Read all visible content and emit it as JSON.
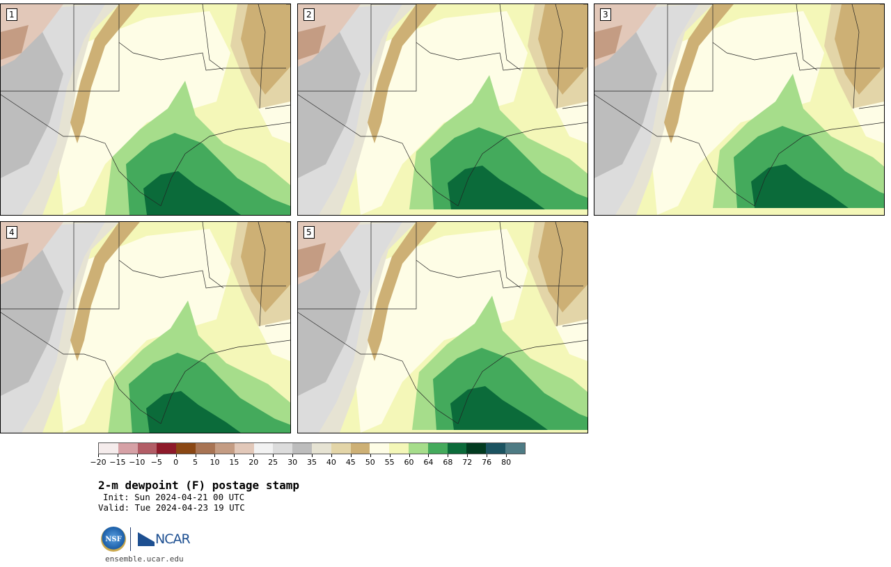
{
  "panels": [
    {
      "label": "1"
    },
    {
      "label": "2"
    },
    {
      "label": "3"
    },
    {
      "label": "4"
    },
    {
      "label": "5"
    }
  ],
  "colorbar": {
    "labels": [
      "−20",
      "−15",
      "−10",
      "−5",
      "0",
      "5",
      "10",
      "15",
      "20",
      "25",
      "30",
      "35",
      "40",
      "45",
      "50",
      "55",
      "60",
      "64",
      "68",
      "72",
      "76",
      "80"
    ],
    "colors": [
      "#f5ecec",
      "#d6a1a6",
      "#b25d66",
      "#8e1a2a",
      "#8a4714",
      "#a87454",
      "#c49c83",
      "#e2c8b9",
      "#f2f2f2",
      "#dcdcdc",
      "#bdbdbd",
      "#e6e3d3",
      "#e3d5a8",
      "#cdb075",
      "#fefde6",
      "#f4f7b8",
      "#a6dd8b",
      "#44aa5c",
      "#0b6b3a",
      "#023b20",
      "#1b5360",
      "#4e7b84"
    ]
  },
  "title": "2-m dewpoint (F) postage stamp",
  "init_line": "Init: Sun 2024-04-21 00 UTC",
  "valid_line": "Valid: Tue 2024-04-23 19 UTC",
  "logos": {
    "nsf": "NSF",
    "ncar": "NCAR"
  },
  "site": "ensemble.ucar.edu"
}
